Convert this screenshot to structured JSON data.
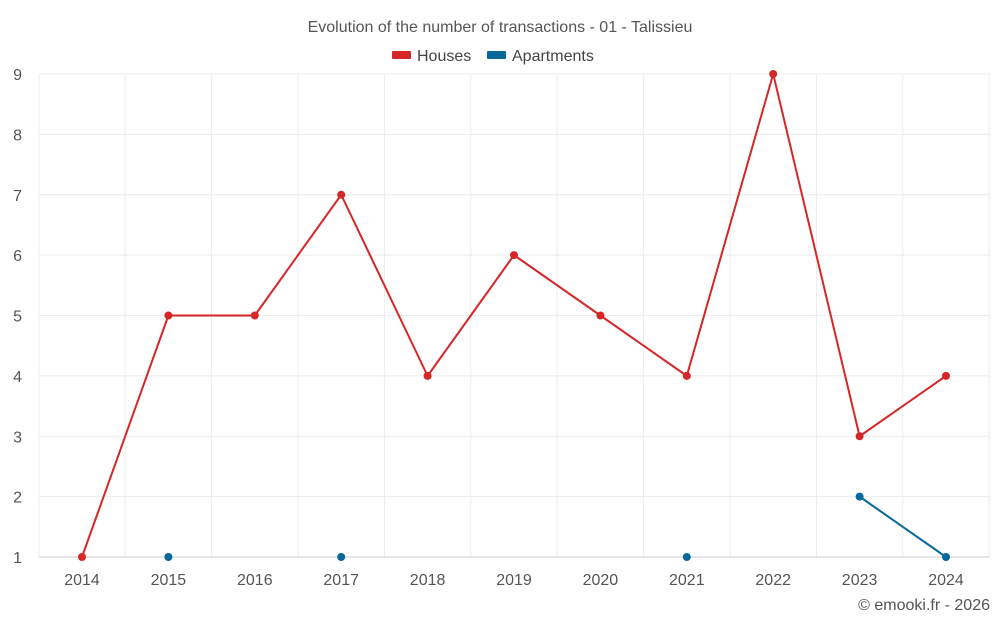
{
  "chart_data": {
    "type": "line",
    "title": "Evolution of the number of transactions - 01 - Talissieu",
    "xlabel": "",
    "ylabel": "",
    "categories": [
      "2014",
      "2015",
      "2016",
      "2017",
      "2018",
      "2019",
      "2020",
      "2021",
      "2022",
      "2023",
      "2024"
    ],
    "ylim": [
      1,
      9
    ],
    "yticks": [
      1,
      2,
      3,
      4,
      5,
      6,
      7,
      8,
      9
    ],
    "grid": true,
    "legend_position": "top-center",
    "series": [
      {
        "name": "Houses",
        "color": "#d62728",
        "values": [
          1,
          5,
          5,
          7,
          4,
          6,
          5,
          4,
          9,
          3,
          4
        ]
      },
      {
        "name": "Apartments",
        "color": "#06689b",
        "values": [
          null,
          1,
          null,
          1,
          null,
          null,
          null,
          1,
          null,
          2,
          1
        ]
      }
    ]
  },
  "footer": {
    "credit": "© emooki.fr - 2026"
  }
}
